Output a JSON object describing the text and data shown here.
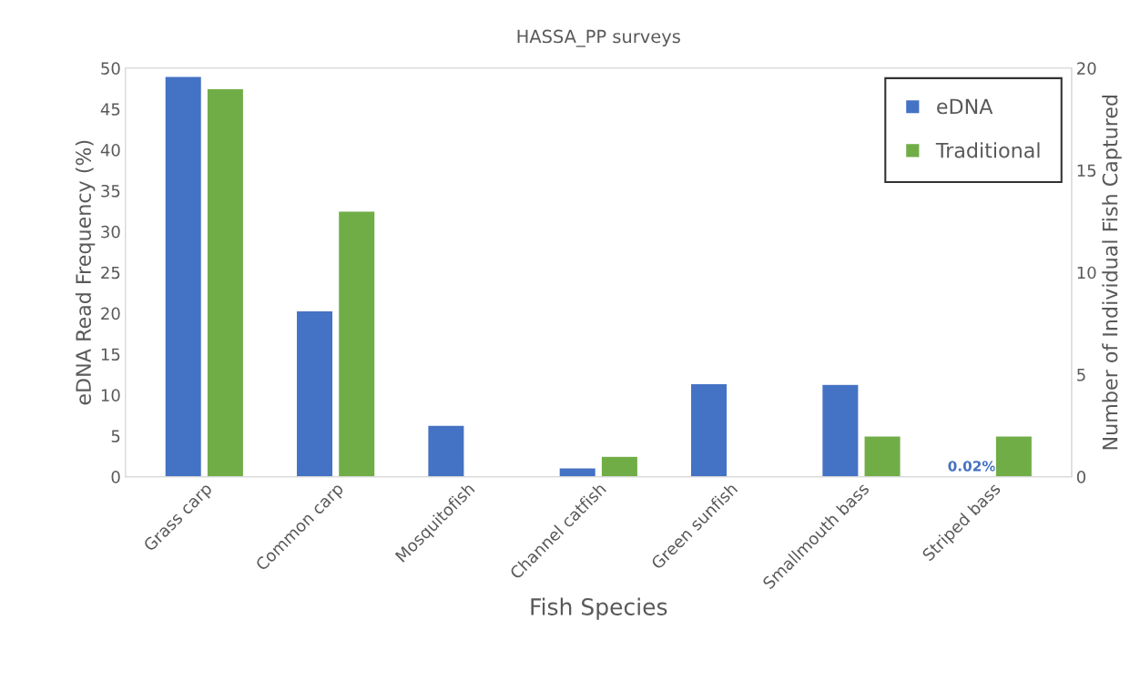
{
  "chart_data": {
    "type": "bar",
    "title": "HASSA_PP surveys",
    "xlabel": "Fish Species",
    "ylabel": "eDNA Read Frequency (%)",
    "y2label": "Number of Individual Fish Captured",
    "categories": [
      "Grass carp",
      "Common carp",
      "Mosquitofish",
      "Channel catfish",
      "Green sunfish",
      "Smallmouth bass",
      "Striped bass"
    ],
    "series": [
      {
        "name": "eDNA",
        "color": "#4472c4",
        "values": [
          49.0,
          20.3,
          6.3,
          1.1,
          11.4,
          11.3,
          0.02
        ],
        "value_labels": [
          null,
          null,
          null,
          null,
          null,
          null,
          "0.02%"
        ]
      },
      {
        "name": "Traditional",
        "color": "#70ad47",
        "axis": "y2",
        "values": [
          19,
          13,
          null,
          1,
          null,
          2,
          2
        ]
      }
    ],
    "ylim": [
      0,
      50
    ],
    "yticks": [
      0,
      5,
      10,
      15,
      20,
      25,
      30,
      35,
      40,
      45,
      50
    ],
    "y2lim": [
      0,
      20
    ],
    "y2ticks": [
      0,
      5,
      10,
      15,
      20
    ],
    "grid": false,
    "legend": "top right"
  }
}
